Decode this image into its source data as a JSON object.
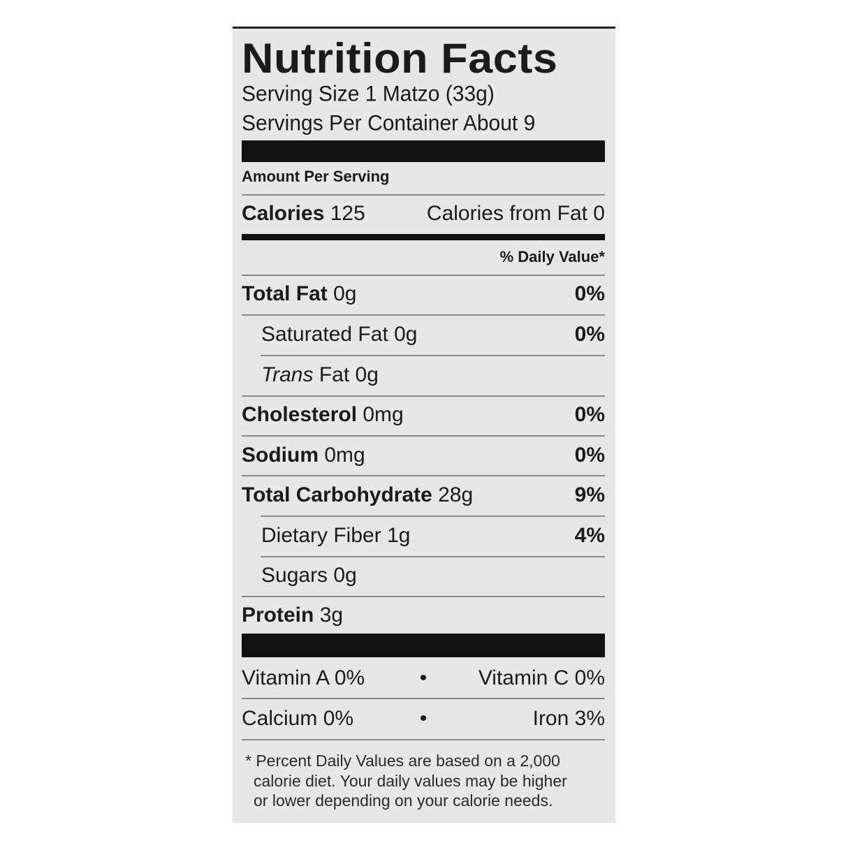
{
  "title": "Nutrition Facts",
  "serving_size": "Serving Size 1 Matzo (33g)",
  "servings_per_container": "Servings Per Container About 9",
  "amount_per_serving": "Amount Per Serving",
  "calories": {
    "label": "Calories",
    "value": "125",
    "from_fat": "Calories from Fat 0"
  },
  "daily_value_header": "% Daily Value*",
  "nutrients": [
    {
      "label": "Total Fat",
      "amount": "0g",
      "dv": "0%"
    },
    {
      "label": "Saturated Fat",
      "amount": "0g",
      "dv": "0%"
    },
    {
      "label": "Trans",
      "label_rest": "Fat",
      "amount": "0g",
      "dv": ""
    },
    {
      "label": "Cholesterol",
      "amount": "0mg",
      "dv": "0%"
    },
    {
      "label": "Sodium",
      "amount": "0mg",
      "dv": "0%"
    },
    {
      "label": "Total Carbohydrate",
      "amount": "28g",
      "dv": "9%"
    },
    {
      "label": "Dietary Fiber",
      "amount": "1g",
      "dv": "4%"
    },
    {
      "label": "Sugars",
      "amount": "0g",
      "dv": ""
    },
    {
      "label": "Protein",
      "amount": "3g",
      "dv": ""
    }
  ],
  "vitamins": [
    {
      "left": "Vitamin A 0%",
      "sep": "•",
      "right": "Vitamin C 0%"
    },
    {
      "left": "Calcium 0%",
      "sep": "•",
      "right": "Iron 3%"
    }
  ],
  "footnote": [
    "* Percent Daily Values are based on a 2,000",
    "calorie diet. Your daily values may be higher",
    "or lower depending on your calorie needs."
  ]
}
